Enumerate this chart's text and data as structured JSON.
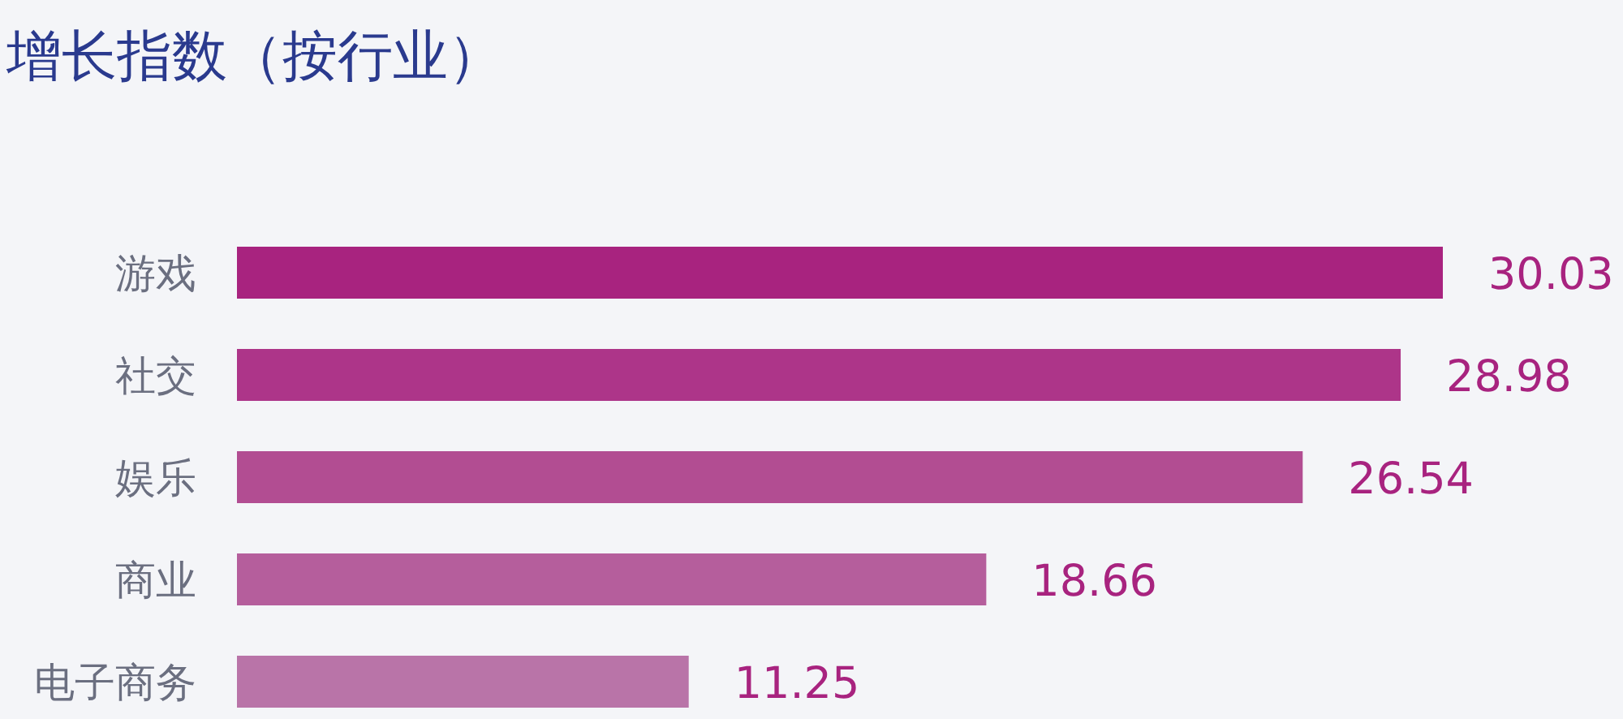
{
  "chart_data": {
    "type": "bar",
    "orientation": "horizontal",
    "title": "增长指数（按行业）",
    "categories": [
      "游戏",
      "社交",
      "娱乐",
      "商业",
      "电子商务"
    ],
    "values": [
      30.03,
      28.98,
      26.54,
      18.66,
      11.25
    ],
    "colors": [
      "#a8237f",
      "#ad3589",
      "#b24d92",
      "#b55e9c",
      "#b974a8"
    ],
    "data_labels": true
  }
}
